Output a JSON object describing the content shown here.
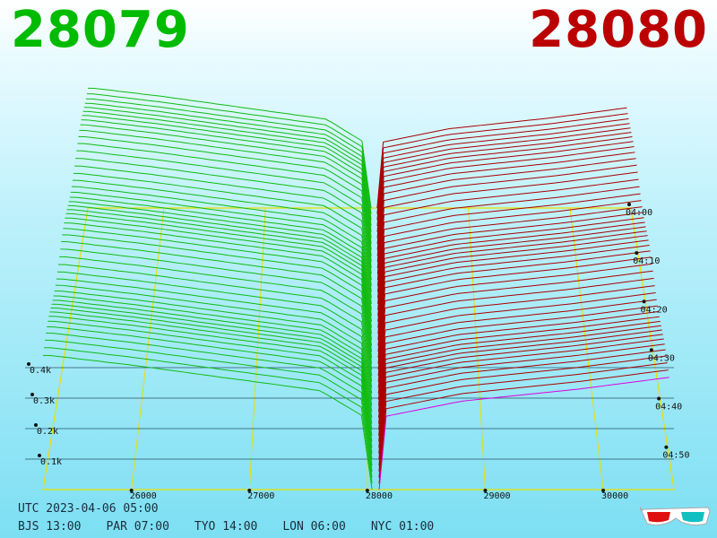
{
  "header": {
    "bid": "28079",
    "ask": "28080",
    "bid_color": "#00bb00",
    "ask_color": "#bb0000"
  },
  "footer": {
    "utc": "UTC 2023-04-06 05:00",
    "zones": [
      "BJS 13:00",
      "PAR 07:00",
      "TYO 14:00",
      "LON 06:00",
      "NYC 01:00"
    ]
  },
  "icons": {
    "corner": "3d-glasses-icon"
  },
  "chart_data": {
    "type": "area",
    "x_ticks": [
      26000,
      27000,
      28000,
      29000,
      30000
    ],
    "xlim": [
      25250,
      30600
    ],
    "y_ticks": [
      "0.1k",
      "0.2k",
      "0.3k",
      "0.4k"
    ],
    "y_values": [
      100,
      200,
      300,
      400
    ],
    "z_ticks": [
      "04:00",
      "04:10",
      "04:20",
      "04:30",
      "04:40",
      "04:50"
    ],
    "snapshots": 48,
    "bid_series_color": "#11bb11",
    "ask_series_color": "#aa0000",
    "latest_ask_color": "#dd00dd",
    "mid_price": 28080,
    "bid_profile": {
      "x": [
        25300,
        26000,
        26800,
        27600,
        27950,
        28000
      ],
      "cum": [
        440,
        410,
        370,
        330,
        250,
        0
      ]
    },
    "ask_profile": {
      "x": [
        28080,
        28150,
        28800,
        29800,
        30600
      ],
      "cum": [
        0,
        240,
        290,
        330,
        370
      ]
    }
  }
}
